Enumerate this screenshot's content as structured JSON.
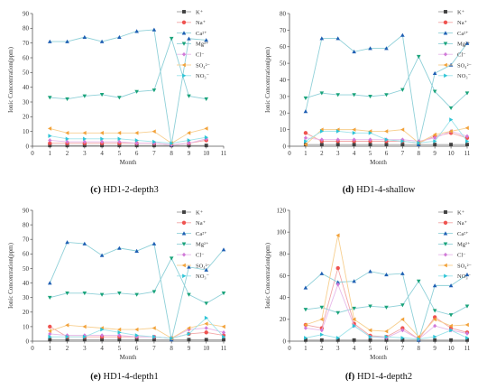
{
  "chart_data": [
    {
      "type": "line",
      "panel": "c",
      "caption_letter": "(c)",
      "caption_text": "HD1-2-depth3",
      "xlabel": "Month",
      "ylabel": "Ionic Concentration(ppm)",
      "xlim": [
        0,
        11
      ],
      "ylim": [
        0,
        90
      ],
      "xticks": [
        0,
        1,
        2,
        3,
        4,
        5,
        6,
        7,
        8,
        9,
        10,
        11
      ],
      "yticks": [
        0,
        10,
        20,
        30,
        40,
        50,
        60,
        70,
        80,
        90
      ],
      "legend_placement": "top-right",
      "x": [
        1,
        2,
        3,
        4,
        5,
        6,
        7,
        8,
        9,
        10
      ],
      "series": [
        {
          "name": "K⁺",
          "values": [
            0.5,
            0.5,
            0.5,
            0.5,
            0.5,
            0.5,
            0.5,
            0.5,
            0.5,
            0.5
          ]
        },
        {
          "name": "Na⁺",
          "values": [
            2,
            2,
            2,
            2,
            2,
            2,
            2,
            1,
            2,
            4
          ]
        },
        {
          "name": "Ca²⁺",
          "values": [
            71,
            71,
            74,
            71,
            74,
            78,
            79,
            1,
            73,
            72
          ]
        },
        {
          "name": "Mg²⁺",
          "values": [
            33,
            32,
            34,
            35,
            33,
            37,
            38,
            73,
            34,
            32
          ]
        },
        {
          "name": "Cl⁻",
          "values": [
            4,
            3,
            3,
            3,
            3,
            2,
            2,
            1,
            2,
            5
          ]
        },
        {
          "name": "SO₄²⁻",
          "values": [
            12,
            9,
            9,
            9,
            9,
            9,
            10,
            2,
            9,
            12
          ]
        },
        {
          "name": "NO₃⁻",
          "values": [
            7,
            5,
            5,
            5,
            5,
            4,
            3,
            2,
            4,
            6
          ]
        }
      ]
    },
    {
      "type": "line",
      "panel": "d",
      "caption_letter": "(d)",
      "caption_text": "HD1-4-shallow",
      "xlabel": "Month",
      "ylabel": "Ionic Concentration(ppm)",
      "xlim": [
        0,
        11
      ],
      "ylim": [
        0,
        80
      ],
      "xticks": [
        0,
        1,
        2,
        3,
        4,
        5,
        6,
        7,
        8,
        9,
        10,
        11
      ],
      "yticks": [
        0,
        10,
        20,
        30,
        40,
        50,
        60,
        70,
        80
      ],
      "legend_placement": "top-right",
      "x": [
        1,
        2,
        3,
        4,
        5,
        6,
        7,
        8,
        9,
        10,
        11
      ],
      "series": [
        {
          "name": "K⁺",
          "values": [
            1,
            1,
            1,
            1,
            1,
            1,
            1,
            1,
            1,
            1,
            1
          ]
        },
        {
          "name": "Na⁺",
          "values": [
            8,
            3,
            3,
            3,
            3,
            3,
            3,
            2,
            6,
            8,
            5
          ]
        },
        {
          "name": "Ca²⁺",
          "values": [
            21,
            65,
            65,
            57,
            59,
            59,
            67,
            1,
            44,
            49,
            62
          ]
        },
        {
          "name": "Mg²⁺",
          "values": [
            29,
            32,
            31,
            31,
            30,
            31,
            34,
            54,
            33,
            23,
            32
          ]
        },
        {
          "name": "Cl⁻",
          "values": [
            5,
            4,
            4,
            4,
            4,
            4,
            4,
            3,
            5,
            9,
            6
          ]
        },
        {
          "name": "SO₄²⁻",
          "values": [
            1,
            10,
            10,
            10,
            9,
            9,
            10,
            2,
            7,
            9,
            11
          ]
        },
        {
          "name": "NO₃⁻",
          "values": [
            3,
            9,
            9,
            8,
            8,
            4,
            3,
            2,
            3,
            16,
            3
          ]
        }
      ]
    },
    {
      "type": "line",
      "panel": "e",
      "caption_letter": "(e)",
      "caption_text": "HD1-4-depth1",
      "xlabel": "Month",
      "ylabel": "Ionic Concentration(ppm)",
      "xlim": [
        0,
        11
      ],
      "ylim": [
        0,
        90
      ],
      "xticks": [
        0,
        1,
        2,
        3,
        4,
        5,
        6,
        7,
        8,
        9,
        10,
        11
      ],
      "yticks": [
        0,
        10,
        20,
        30,
        40,
        50,
        60,
        70,
        80,
        90
      ],
      "legend_placement": "top-right",
      "x": [
        1,
        2,
        3,
        4,
        5,
        6,
        7,
        8,
        9,
        10,
        11
      ],
      "series": [
        {
          "name": "K⁺",
          "values": [
            1,
            1,
            1,
            1,
            1,
            1,
            1,
            1,
            1,
            1,
            1
          ]
        },
        {
          "name": "Na⁺",
          "values": [
            10,
            3,
            3,
            3,
            3,
            3,
            3,
            2,
            5,
            6,
            4
          ]
        },
        {
          "name": "Ca²⁺",
          "values": [
            40,
            68,
            67,
            59,
            64,
            62,
            67,
            1,
            51,
            49,
            63
          ]
        },
        {
          "name": "Mg²⁺",
          "values": [
            30,
            33,
            33,
            32,
            33,
            32,
            34,
            57,
            32,
            26,
            33
          ]
        },
        {
          "name": "Cl⁻",
          "values": [
            5,
            4,
            4,
            4,
            4,
            3,
            3,
            2,
            8,
            9,
            6
          ]
        },
        {
          "name": "SO₄²⁻",
          "values": [
            7,
            11,
            10,
            9,
            8,
            8,
            9,
            2,
            9,
            12,
            10
          ]
        },
        {
          "name": "NO₃⁻",
          "values": [
            3,
            3,
            3,
            8,
            6,
            4,
            3,
            2,
            5,
            16,
            3
          ]
        }
      ]
    },
    {
      "type": "line",
      "panel": "f",
      "caption_letter": "(f)",
      "caption_text": "HD1-4-depth2",
      "xlabel": "Month",
      "ylabel": "Ionic Concentration(ppm)",
      "xlim": [
        0,
        11
      ],
      "ylim": [
        0,
        120
      ],
      "xticks": [
        0,
        1,
        2,
        3,
        4,
        5,
        6,
        7,
        8,
        9,
        10,
        11
      ],
      "yticks": [
        0,
        20,
        40,
        60,
        80,
        100,
        120
      ],
      "legend_placement": "top-right",
      "x": [
        1,
        2,
        3,
        4,
        5,
        6,
        7,
        8,
        9,
        10,
        11
      ],
      "series": [
        {
          "name": "K⁺",
          "values": [
            1,
            1,
            1,
            1,
            1,
            1,
            1,
            1,
            1,
            1,
            1
          ]
        },
        {
          "name": "Na⁺",
          "values": [
            15,
            12,
            67,
            16,
            5,
            4,
            12,
            2,
            22,
            12,
            8
          ]
        },
        {
          "name": "Ca²⁺",
          "values": [
            49,
            62,
            54,
            55,
            64,
            61,
            62,
            1,
            51,
            51,
            61
          ]
        },
        {
          "name": "Mg²⁺",
          "values": [
            29,
            31,
            26,
            30,
            32,
            31,
            33,
            55,
            28,
            24,
            32
          ]
        },
        {
          "name": "Cl⁻",
          "values": [
            12,
            10,
            52,
            14,
            4,
            3,
            10,
            2,
            14,
            10,
            7
          ]
        },
        {
          "name": "SO₄²⁻",
          "values": [
            15,
            20,
            97,
            20,
            10,
            9,
            20,
            4,
            20,
            14,
            15
          ]
        },
        {
          "name": "NO₃⁻",
          "values": [
            3,
            6,
            3,
            14,
            4,
            4,
            3,
            2,
            4,
            10,
            3
          ]
        }
      ]
    }
  ],
  "colors": {
    "K⁺": "#404040",
    "Na⁺": "#ef5350",
    "Ca²⁺": "#1f5fb3",
    "Mg²⁺": "#1aa37a",
    "Cl⁻": "#d17ad8",
    "SO₄²⁻": "#f2a23a",
    "NO₃⁻": "#2ec4d6"
  },
  "line_colors": {
    "K⁺": "#9a9a9a",
    "Na⁺": "#f2a7a7",
    "Ca²⁺": "#8fd0d8",
    "Mg²⁺": "#8fd0d8",
    "Cl⁻": "#e7b9ea",
    "SO₄²⁻": "#f7cf8f",
    "NO₃⁻": "#9fe3ea"
  },
  "markers": {
    "K⁺": "square",
    "Na⁺": "circle",
    "Ca²⁺": "triangle-up",
    "Mg²⁺": "triangle-down",
    "Cl⁻": "diamond",
    "SO₄²⁻": "triangle-left",
    "NO₃⁻": "triangle-right"
  }
}
